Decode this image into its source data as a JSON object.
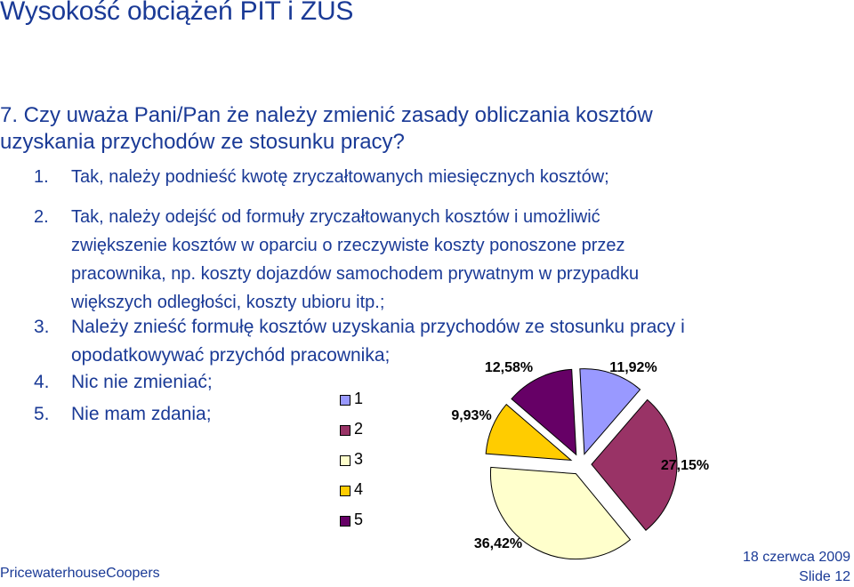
{
  "title": "Wysokość obciążeń PIT i ZUS",
  "question": {
    "lines": [
      "7. Czy uważa Pani/Pan że należy zmienić zasady obliczania kosztów",
      "uzyskania przychodów ze stosunku pracy?"
    ]
  },
  "options": [
    {
      "num": "1.",
      "lines": [
        "Tak, należy podnieść kwotę zryczałtowanych miesięcznych kosztów;"
      ]
    },
    {
      "num": "2.",
      "lines": [
        "Tak, należy odejść od formuły zryczałtowanych kosztów i umożliwić",
        "zwiększenie kosztów w oparciu o rzeczywiste koszty ponoszone przez",
        "pracownika, np. koszty dojazdów samochodem prywatnym w przypadku",
        "większych odległości, koszty ubioru itp.;"
      ]
    },
    {
      "num": "3.",
      "lines": [
        "Należy znieść formułę kosztów uzyskania przychodów ze stosunku pracy i",
        "opodatkowywać przychód pracownika;"
      ]
    },
    {
      "num": "4.",
      "lines": [
        "Nic nie zmieniać;"
      ]
    },
    {
      "num": "5.",
      "lines": [
        "Nie mam zdania;"
      ]
    }
  ],
  "chart_data": {
    "type": "pie",
    "title": "",
    "legend_position": "left",
    "slices": [
      {
        "label": "1",
        "value": 11.92,
        "display": "11,92%",
        "color": "#9999ff"
      },
      {
        "label": "2",
        "value": 27.15,
        "display": "27,15%",
        "color": "#993366"
      },
      {
        "label": "3",
        "value": 36.42,
        "display": "36,42%",
        "color": "#ffffcc"
      },
      {
        "label": "4",
        "value": 9.93,
        "display": "9,93%",
        "color": "#ffcc00"
      },
      {
        "label": "5",
        "value": 12.58,
        "display": "12,58%",
        "color": "#660066"
      }
    ]
  },
  "footer": {
    "company": "PricewaterhouseCoopers",
    "date": "18 czerwca 2009",
    "slide": "Slide 12"
  }
}
